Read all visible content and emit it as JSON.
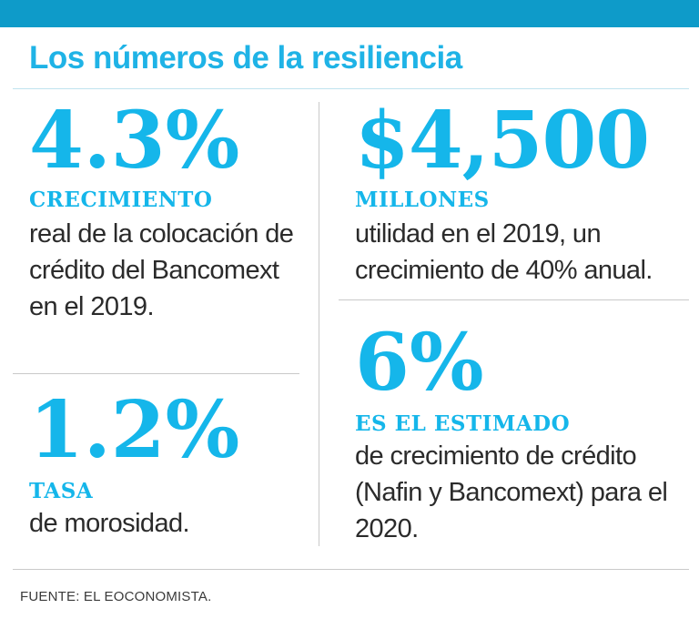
{
  "header": {
    "title": "Los números de la resiliencia"
  },
  "stats": [
    {
      "value": "4.3%",
      "label": "CRECIMIENTO",
      "description": "real de la colocación de crédito del Bancomext en el 2019."
    },
    {
      "value": "1.2%",
      "label": "TASA",
      "description": "de morosidad."
    },
    {
      "value": "$4,500",
      "label": "MILLONES",
      "description": "utilidad en el 2019, un crecimiento de 40% anual."
    },
    {
      "value": "6%",
      "label": "ES EL ESTIMADO",
      "description": "de crecimiento de crédito (Nafin y Bancomext) para el 2020."
    }
  ],
  "footer": {
    "source": "FUENTE: EL EOCONOMISTA."
  },
  "colors": {
    "accent": "#15b6ea",
    "top_bar": "#0e9bc9",
    "text": "#2b2b2b"
  }
}
